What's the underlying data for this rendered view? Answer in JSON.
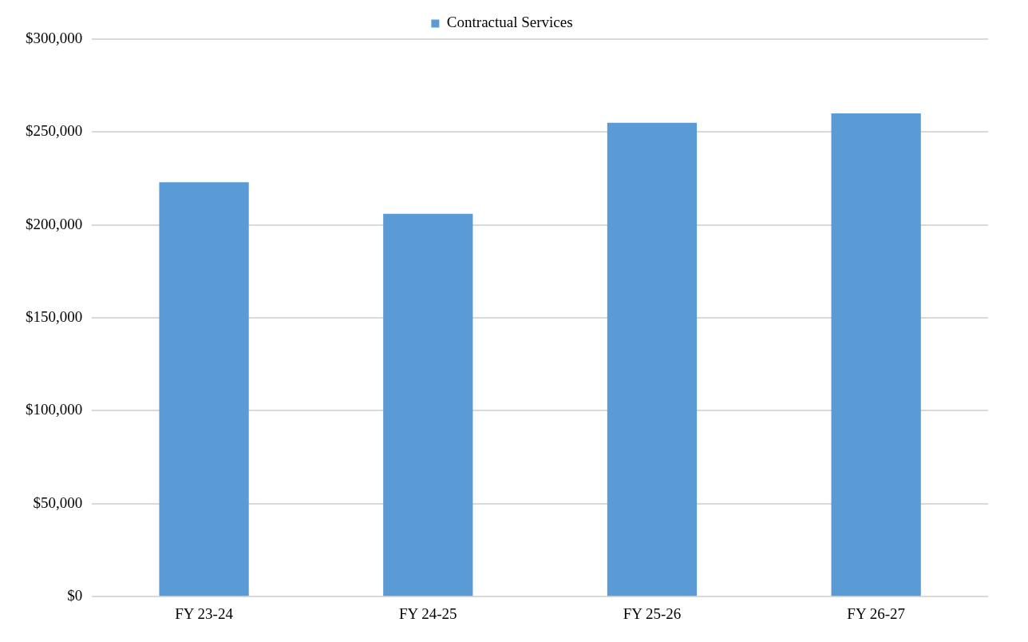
{
  "chart_data": {
    "type": "bar",
    "categories": [
      "FY 23-24",
      "FY 24-25",
      "FY 25-26",
      "FY 26-27"
    ],
    "series": [
      {
        "name": "Contractual Services",
        "color": "#5b9bd5",
        "values": [
          223000,
          206000,
          255000,
          260000
        ]
      }
    ],
    "ylim": [
      0,
      300000
    ],
    "yticks": [
      {
        "value": 0,
        "label": "$0"
      },
      {
        "value": 50000,
        "label": "$50,000"
      },
      {
        "value": 100000,
        "label": "$100,000"
      },
      {
        "value": 150000,
        "label": "$150,000"
      },
      {
        "value": 200000,
        "label": "$200,000"
      },
      {
        "value": 250000,
        "label": "$250,000"
      },
      {
        "value": 300000,
        "label": "$300,000"
      }
    ],
    "grid": "y",
    "legend": "top"
  }
}
